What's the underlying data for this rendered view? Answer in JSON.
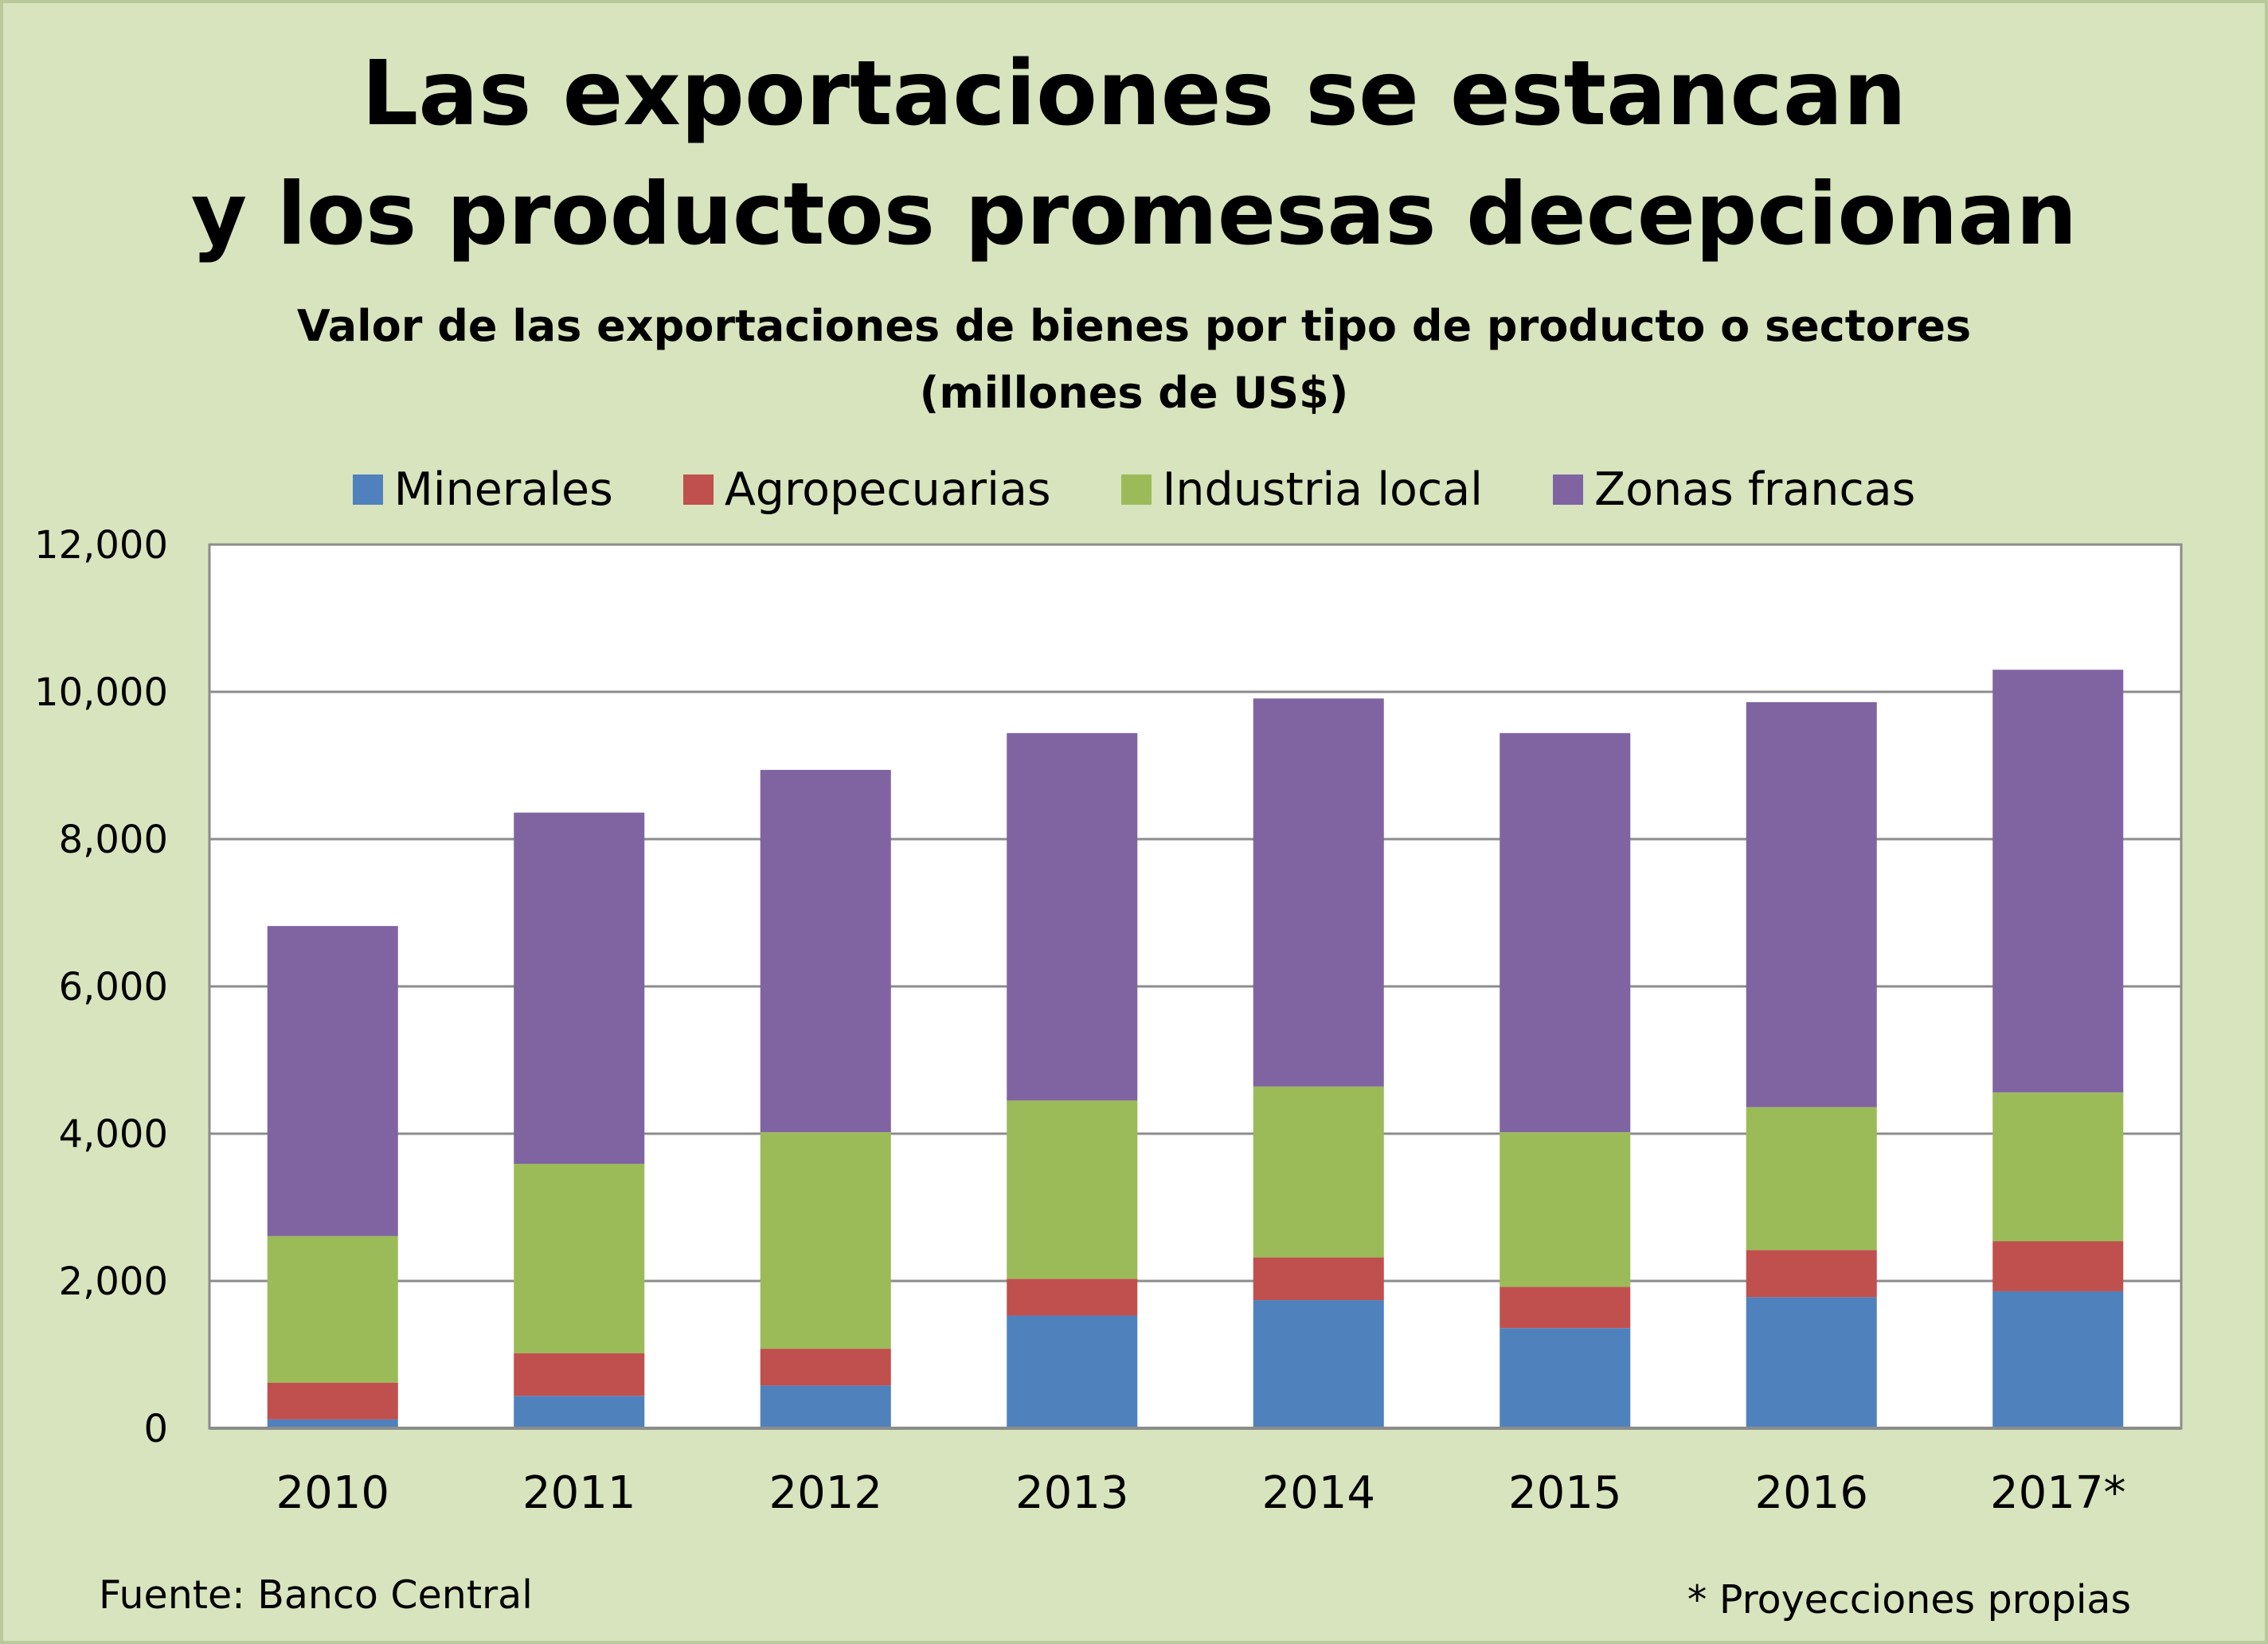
{
  "chart_data": {
    "type": "bar",
    "stacked": true,
    "title": "Las exportaciones se estancan",
    "title_line2": "y los productos promesas decepcionan",
    "subtitle": "Valor de las exportaciones de bienes por tipo de producto o sectores",
    "subtitle_line2": "(millones de US$)",
    "categories": [
      "2010",
      "2011",
      "2012",
      "2013",
      "2014",
      "2015",
      "2016",
      "2017*"
    ],
    "series": [
      {
        "name": "Minerales",
        "color": "#4f81bd",
        "values": [
          120,
          440,
          580,
          1530,
          1740,
          1360,
          1780,
          1860
        ]
      },
      {
        "name": "Agropecuarias",
        "color": "#c0504d",
        "values": [
          500,
          580,
          500,
          500,
          580,
          560,
          640,
          680
        ]
      },
      {
        "name": "Industria local",
        "color": "#9bbb59",
        "values": [
          1990,
          2570,
          2940,
          2420,
          2320,
          2100,
          1940,
          2020
        ]
      },
      {
        "name": "Zonas francas",
        "color": "#8064a2",
        "values": [
          4210,
          4770,
          4920,
          4990,
          5270,
          5420,
          5500,
          5740
        ]
      }
    ],
    "ylim": [
      0,
      12000
    ],
    "yticks": [
      "0",
      "2,000",
      "4,000",
      "6,000",
      "8,000",
      "10,000",
      "12,000"
    ],
    "grid": true,
    "legend_position": "top",
    "source": "Fuente: Banco Central",
    "footnote": "* Proyecciones propias"
  }
}
